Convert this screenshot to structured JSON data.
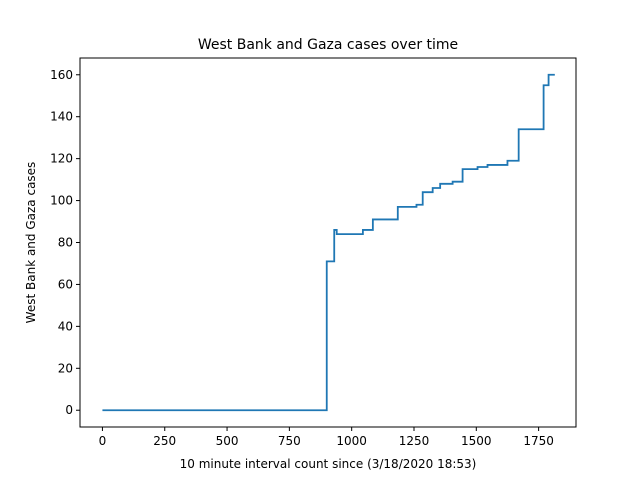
{
  "chart_data": {
    "type": "line",
    "step": "post",
    "title": "West Bank and Gaza cases over time",
    "xlabel": "10 minute interval count since (3/18/2020 18:53)",
    "ylabel": "West Bank and Gaza cases",
    "xlim": [
      -90,
      1900
    ],
    "ylim": [
      -8,
      168
    ],
    "xticks": [
      0,
      250,
      500,
      750,
      1000,
      1250,
      1500,
      1750
    ],
    "yticks": [
      0,
      20,
      40,
      60,
      80,
      100,
      120,
      140,
      160
    ],
    "grid": false,
    "line_color": "#1f77b4",
    "series": [
      {
        "x": [
          0,
          900,
          930,
          940,
          1045,
          1085,
          1185,
          1260,
          1285,
          1325,
          1355,
          1375,
          1405,
          1445,
          1505,
          1530,
          1545,
          1625,
          1670,
          1770,
          1790,
          1815
        ],
        "y": [
          0,
          71,
          86,
          84,
          86,
          91,
          97,
          98,
          104,
          106,
          108,
          108,
          109,
          115,
          116,
          116,
          117,
          119,
          134,
          155,
          160,
          160
        ]
      }
    ]
  }
}
